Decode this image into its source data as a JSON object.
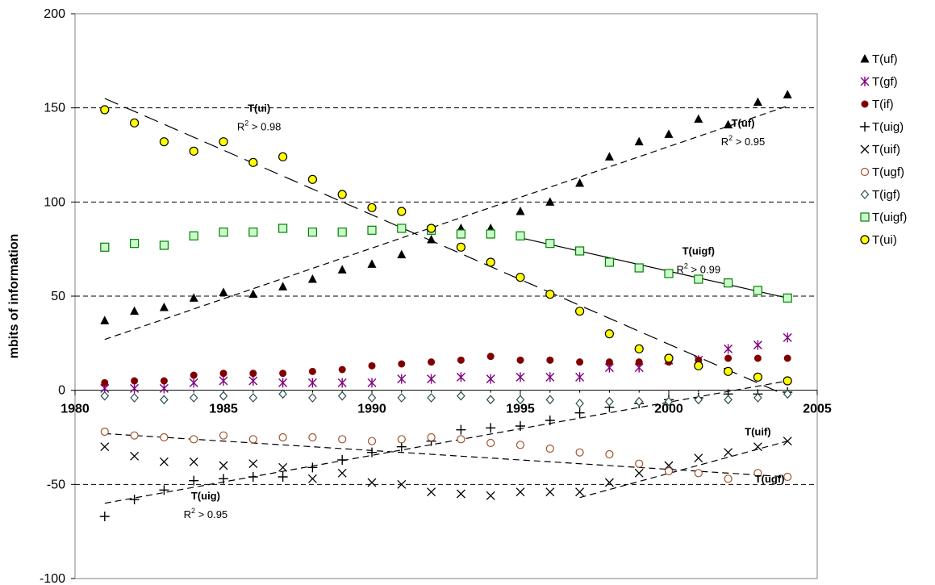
{
  "chart_data": {
    "type": "scatter",
    "ylabel": "mbits of information",
    "xlim": [
      1980,
      2005
    ],
    "ylim": [
      -100,
      200
    ],
    "x_ticks": [
      "1980",
      "1985",
      "1990",
      "1995",
      "2000",
      "2005"
    ],
    "y_ticks": [
      "200",
      "150",
      "100",
      "50",
      "0",
      "-50",
      "-100"
    ],
    "gridlines_y": [
      150,
      100,
      50,
      -50
    ],
    "legend_position": "right",
    "x": [
      1981,
      1982,
      1983,
      1984,
      1985,
      1986,
      1987,
      1988,
      1989,
      1990,
      1991,
      1992,
      1993,
      1994,
      1995,
      1996,
      1997,
      1998,
      1999,
      2000,
      2001,
      2002,
      2003,
      2004
    ],
    "series": [
      {
        "name": "T(uf)",
        "marker": "triangle",
        "color": "#000000",
        "values": [
          37,
          42,
          44,
          49,
          52,
          51,
          55,
          59,
          64,
          67,
          72,
          80,
          86,
          86,
          95,
          100,
          110,
          124,
          132,
          136,
          144,
          141,
          153,
          157
        ]
      },
      {
        "name": "T(gf)",
        "marker": "asterisk",
        "color": "#800080",
        "values": [
          1,
          1,
          1,
          4,
          5,
          5,
          4,
          4,
          4,
          4,
          6,
          6,
          7,
          6,
          7,
          7,
          7,
          12,
          12,
          16,
          16,
          22,
          24,
          28
        ]
      },
      {
        "name": "T(if)",
        "marker": "circle-filled",
        "color": "#800000",
        "values": [
          4,
          5,
          5,
          8,
          9,
          9,
          9,
          10,
          11,
          13,
          14,
          15,
          16,
          18,
          16,
          16,
          15,
          15,
          15,
          15,
          16,
          17,
          17,
          17
        ]
      },
      {
        "name": "T(uig)",
        "marker": "plus",
        "color": "#000000",
        "values": [
          -67,
          -58,
          -53,
          -48,
          -47,
          -46,
          -46,
          -41,
          -37,
          -33,
          -30,
          -27,
          -21,
          -20,
          -19,
          -16,
          -12,
          -9,
          -7,
          -5,
          -4,
          -2,
          -2,
          -1
        ]
      },
      {
        "name": "T(uif)",
        "marker": "x",
        "color": "#000000",
        "values": [
          -30,
          -35,
          -38,
          -38,
          -40,
          -39,
          -41,
          -47,
          -44,
          -49,
          -50,
          -54,
          -55,
          -56,
          -54,
          -54,
          -54,
          -49,
          -44,
          -40,
          -36,
          -33,
          -30,
          -27
        ]
      },
      {
        "name": "T(ugf)",
        "marker": "circle-open",
        "color": "#A0522D",
        "values": [
          -22,
          -24,
          -25,
          -26,
          -24,
          -26,
          -25,
          -25,
          -26,
          -27,
          -26,
          -25,
          -26,
          -28,
          -29,
          -31,
          -33,
          -34,
          -39,
          -43,
          -44,
          -47,
          -44,
          -46
        ]
      },
      {
        "name": "T(igf)",
        "marker": "diamond",
        "color": "#2F4F4F",
        "values": [
          -3,
          -4,
          -5,
          -4,
          -3,
          -4,
          -2,
          -4,
          -3,
          -4,
          -4,
          -4,
          -3,
          -5,
          -5,
          -5,
          -7,
          -6,
          -6,
          -6,
          -5,
          -5,
          -4,
          -2
        ]
      },
      {
        "name": "T(uigf)",
        "marker": "square",
        "color": "#008000",
        "fill": "#CCFFCC",
        "values": [
          76,
          78,
          77,
          82,
          84,
          84,
          86,
          84,
          84,
          85,
          86,
          85,
          83,
          83,
          82,
          78,
          74,
          68,
          65,
          62,
          59,
          57,
          53,
          49
        ]
      },
      {
        "name": "T(ui)",
        "marker": "circle-yellow",
        "color": "#000000",
        "fill": "#FFFF00",
        "values": [
          149,
          142,
          132,
          127,
          132,
          121,
          124,
          112,
          104,
          97,
          95,
          86,
          76,
          68,
          60,
          51,
          42,
          30,
          22,
          17,
          13,
          10,
          7,
          5
        ]
      }
    ],
    "trendlines": [
      {
        "name": "T(ui)",
        "style": "long-dash",
        "x": [
          1981,
          2004
        ],
        "y": [
          155,
          -3
        ]
      },
      {
        "name": "T(uf)",
        "style": "dash",
        "x": [
          1981,
          2004
        ],
        "y": [
          27,
          151
        ]
      },
      {
        "name": "T(uigf)",
        "style": "solid",
        "x": [
          1995,
          2004
        ],
        "y": [
          81,
          49
        ]
      },
      {
        "name": "T(uig)",
        "style": "dash",
        "x": [
          1981,
          2004
        ],
        "y": [
          -60,
          5
        ]
      },
      {
        "name": "T(uif)",
        "style": "dash",
        "x": [
          1997,
          2004
        ],
        "y": [
          -57,
          -27
        ]
      },
      {
        "name": "T(ugf)",
        "style": "dash",
        "x": [
          1981,
          2004
        ],
        "y": [
          -23,
          -46
        ]
      }
    ],
    "annotations": [
      {
        "label": "T(ui)",
        "r2": "R² > 0.98",
        "x": 1986.2,
        "y": 148
      },
      {
        "label": "T(uf)",
        "r2": "R² > 0.95",
        "x": 2002.5,
        "y": 140
      },
      {
        "label": "T(uigf)",
        "r2": "R² > 0.99",
        "x": 2001,
        "y": 72
      },
      {
        "label": "T(uig)",
        "r2": "R² > 0.95",
        "x": 1984.4,
        "y": -58
      },
      {
        "label": "T(uif)",
        "r2": "",
        "x": 2003,
        "y": -24
      },
      {
        "label": "T(ugf)",
        "r2": "",
        "x": 2003.4,
        "y": -49
      }
    ]
  }
}
